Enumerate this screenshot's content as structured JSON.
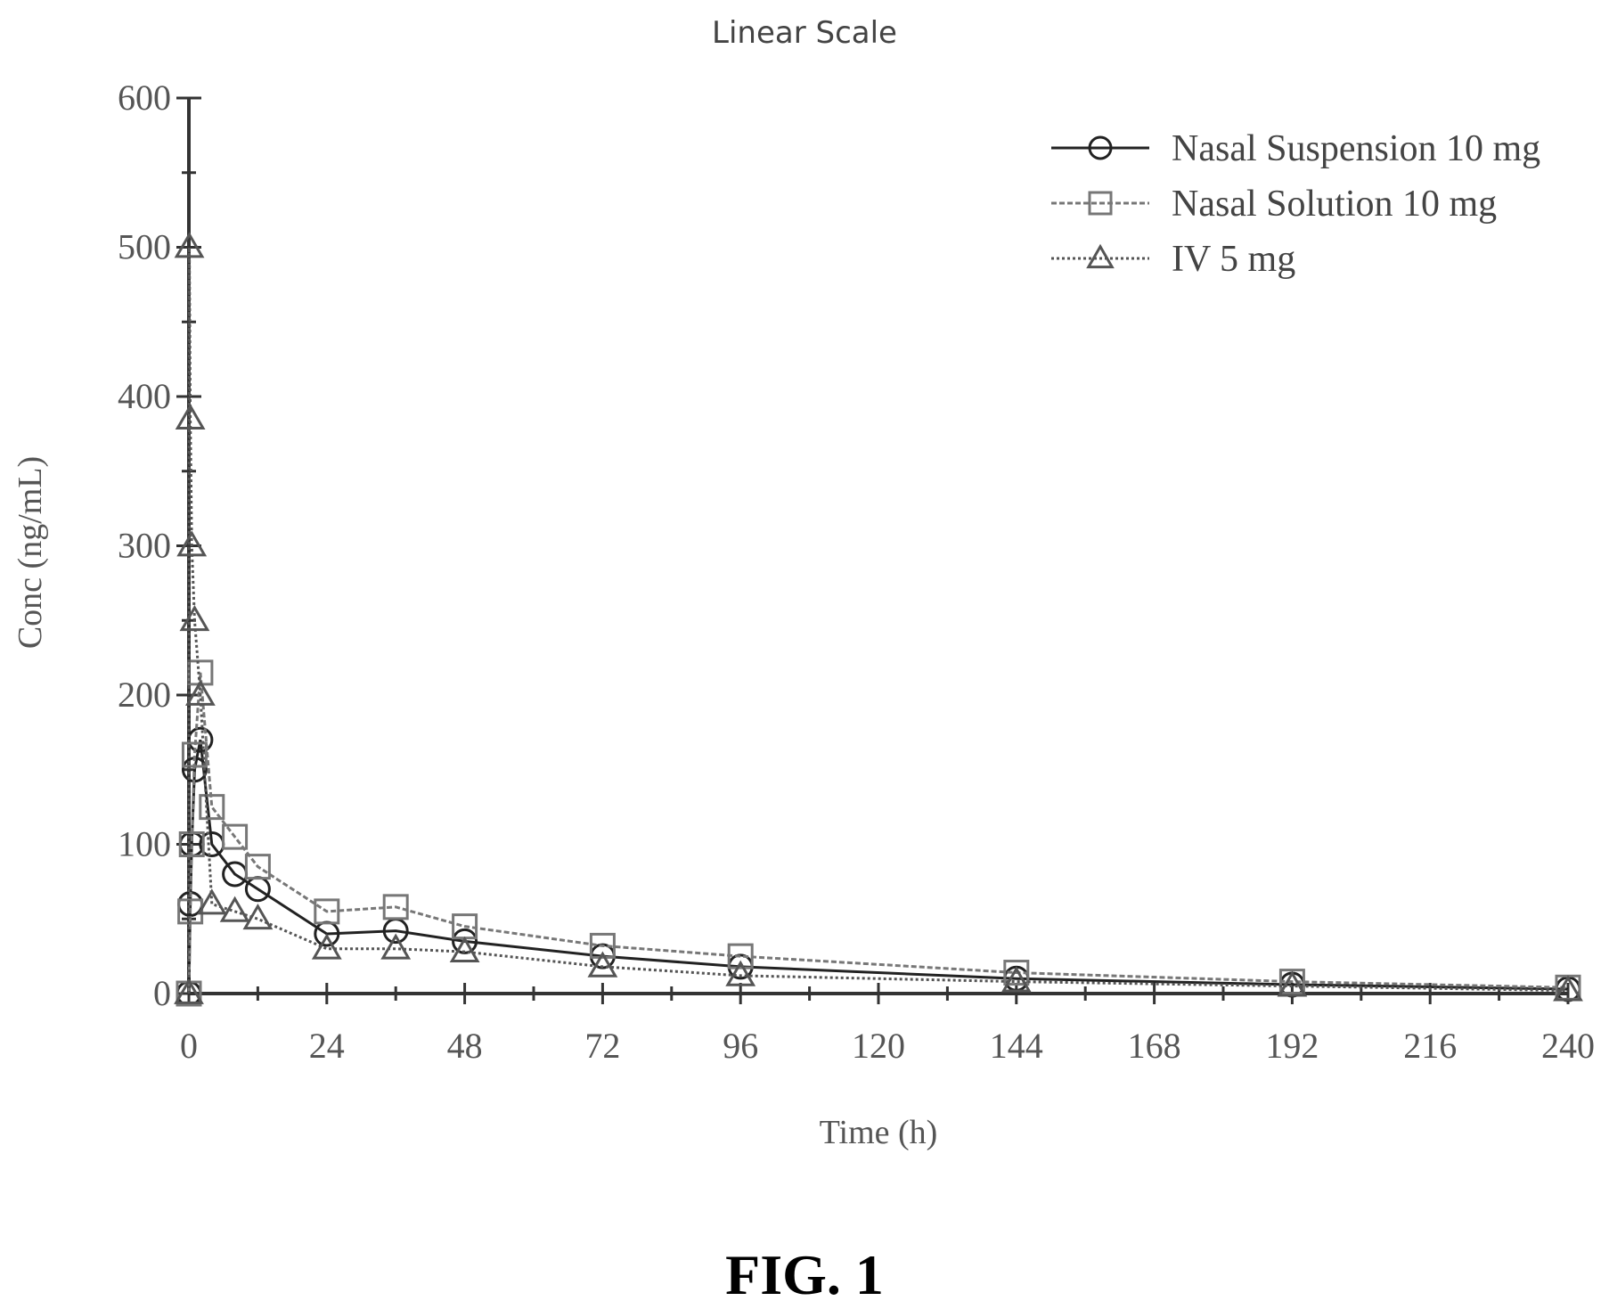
{
  "chart_data": {
    "type": "line",
    "title": "Linear Scale",
    "xlabel": "Time (h)",
    "ylabel": "Conc (ng/mL)",
    "xlim": [
      0,
      240
    ],
    "ylim": [
      0,
      600
    ],
    "x_ticks": [
      "0",
      "24",
      "48",
      "72",
      "96",
      "120",
      "144",
      "168",
      "192",
      "216",
      "240"
    ],
    "y_ticks": [
      "0",
      "100",
      "200",
      "300",
      "400",
      "500",
      "600"
    ],
    "grid": false,
    "legend_position": "top-right",
    "series": [
      {
        "name": "Nasal Suspension 10 mg",
        "marker": "circle",
        "color": "#222222",
        "x": [
          0,
          0.25,
          0.5,
          1,
          2,
          4,
          8,
          12,
          24,
          36,
          48,
          72,
          96,
          144,
          192,
          240
        ],
        "y": [
          0,
          60,
          100,
          150,
          170,
          100,
          80,
          70,
          40,
          42,
          35,
          25,
          18,
          10,
          6,
          3
        ]
      },
      {
        "name": "Nasal Solution 10 mg",
        "marker": "square",
        "color": "#777777",
        "x": [
          0,
          0.25,
          0.5,
          1,
          2,
          4,
          8,
          12,
          24,
          36,
          48,
          72,
          96,
          144,
          192,
          240
        ],
        "y": [
          0,
          55,
          100,
          160,
          215,
          125,
          105,
          85,
          55,
          58,
          45,
          32,
          25,
          14,
          8,
          4
        ]
      },
      {
        "name": "IV 5 mg",
        "marker": "triangle",
        "color": "#555555",
        "x": [
          0,
          0.083,
          0.25,
          0.5,
          1,
          2,
          4,
          8,
          12,
          24,
          36,
          48,
          72,
          96,
          144,
          192,
          240
        ],
        "y": [
          0,
          500,
          385,
          300,
          250,
          200,
          60,
          55,
          50,
          30,
          30,
          28,
          18,
          12,
          8,
          5,
          2
        ]
      }
    ]
  },
  "figure_caption": "FIG. 1"
}
